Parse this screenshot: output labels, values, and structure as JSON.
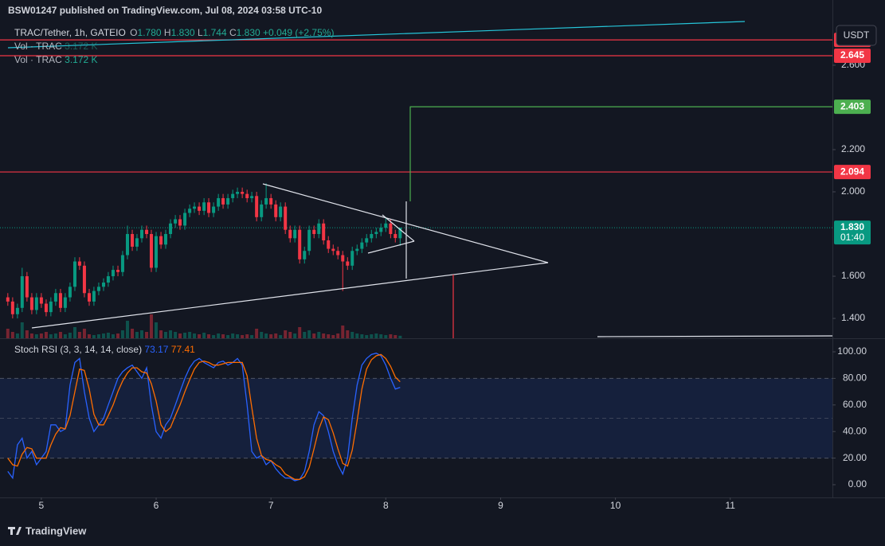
{
  "header": {
    "publisher": "BSW01247 published on TradingView.com, Jul 08, 2024 03:58 UTC-10",
    "brand": "TradingView"
  },
  "chart_data": [
    {
      "type": "candlestick",
      "title": "TRAC/Tether, 1h, GATEIO",
      "ohlc_names": [
        "O",
        "H",
        "L",
        "C"
      ],
      "ohlc_labels": [
        "1.780",
        "1.830",
        "1.744",
        "1.830"
      ],
      "change_label": "+0.049 (+2.75%)",
      "currency": "USDT",
      "up_color": "#089981",
      "down_color": "#f23645",
      "x": [
        4.708,
        4.75,
        4.792,
        4.833,
        4.875,
        4.917,
        4.958,
        5,
        5.042,
        5.083,
        5.125,
        5.167,
        5.208,
        5.25,
        5.292,
        5.333,
        5.375,
        5.417,
        5.458,
        5.5,
        5.542,
        5.583,
        5.625,
        5.667,
        5.708,
        5.75,
        5.792,
        5.833,
        5.875,
        5.917,
        5.958,
        6,
        6.042,
        6.083,
        6.125,
        6.167,
        6.208,
        6.25,
        6.292,
        6.333,
        6.375,
        6.417,
        6.458,
        6.5,
        6.542,
        6.583,
        6.625,
        6.667,
        6.708,
        6.75,
        6.792,
        6.833,
        6.875,
        6.917,
        6.958,
        7,
        7.042,
        7.083,
        7.125,
        7.167,
        7.208,
        7.25,
        7.292,
        7.333,
        7.375,
        7.417,
        7.458,
        7.5,
        7.542,
        7.583,
        7.625,
        7.667,
        7.708,
        7.75,
        7.792,
        7.833,
        7.875,
        7.917,
        7.958,
        8,
        8.042,
        8.083,
        8.125
      ],
      "open": [
        1.5,
        1.48,
        1.42,
        1.45,
        1.6,
        1.5,
        1.44,
        1.5,
        1.47,
        1.43,
        1.48,
        1.52,
        1.45,
        1.5,
        1.55,
        1.67,
        1.65,
        1.52,
        1.48,
        1.53,
        1.55,
        1.57,
        1.6,
        1.63,
        1.62,
        1.7,
        1.8,
        1.74,
        1.78,
        1.82,
        1.8,
        1.64,
        1.79,
        1.75,
        1.8,
        1.85,
        1.87,
        1.84,
        1.9,
        1.92,
        1.93,
        1.91,
        1.95,
        1.9,
        1.93,
        1.97,
        1.94,
        1.97,
        1.99,
        2.0,
        1.99,
        1.97,
        1.98,
        1.88,
        1.94,
        1.97,
        1.94,
        1.88,
        1.93,
        1.82,
        1.78,
        1.82,
        1.68,
        1.72,
        1.82,
        1.8,
        1.85,
        1.77,
        1.73,
        1.72,
        1.7,
        1.67,
        1.65,
        1.72,
        1.73,
        1.76,
        1.78,
        1.8,
        1.81,
        1.83,
        1.85,
        1.8,
        1.78
      ],
      "high": [
        1.52,
        1.5,
        1.47,
        1.64,
        1.62,
        1.52,
        1.52,
        1.52,
        1.49,
        1.5,
        1.54,
        1.54,
        1.52,
        1.57,
        1.69,
        1.69,
        1.67,
        1.54,
        1.55,
        1.57,
        1.59,
        1.62,
        1.65,
        1.65,
        1.72,
        1.84,
        1.82,
        1.8,
        1.84,
        1.84,
        1.82,
        1.81,
        1.81,
        1.82,
        1.87,
        1.89,
        1.89,
        1.92,
        1.94,
        1.95,
        1.95,
        1.97,
        1.97,
        1.95,
        1.99,
        1.99,
        1.99,
        2.01,
        2.02,
        2.02,
        2.01,
        2.0,
        2.0,
        1.96,
        2.04,
        1.99,
        1.96,
        1.95,
        1.95,
        1.84,
        1.84,
        1.84,
        1.74,
        1.84,
        1.84,
        1.87,
        1.87,
        1.79,
        1.75,
        1.74,
        1.72,
        1.69,
        1.74,
        1.75,
        1.78,
        1.8,
        1.82,
        1.83,
        1.85,
        1.88,
        1.87,
        1.82,
        1.83
      ],
      "low": [
        1.46,
        1.4,
        1.4,
        1.43,
        1.48,
        1.42,
        1.42,
        1.45,
        1.41,
        1.41,
        1.46,
        1.43,
        1.43,
        1.48,
        1.53,
        1.63,
        1.5,
        1.46,
        1.46,
        1.51,
        1.53,
        1.55,
        1.58,
        1.6,
        1.6,
        1.68,
        1.72,
        1.72,
        1.76,
        1.78,
        1.62,
        1.62,
        1.73,
        1.73,
        1.78,
        1.83,
        1.82,
        1.82,
        1.88,
        1.9,
        1.89,
        1.89,
        1.88,
        1.88,
        1.91,
        1.92,
        1.92,
        1.95,
        1.97,
        1.97,
        1.95,
        1.95,
        1.86,
        1.86,
        1.92,
        1.92,
        1.86,
        1.86,
        1.8,
        1.76,
        1.76,
        1.66,
        1.66,
        1.7,
        1.78,
        1.78,
        1.75,
        1.71,
        1.7,
        1.68,
        1.53,
        1.63,
        1.63,
        1.7,
        1.71,
        1.74,
        1.76,
        1.78,
        1.79,
        1.81,
        1.78,
        1.76,
        1.744
      ],
      "close": [
        1.48,
        1.42,
        1.45,
        1.6,
        1.5,
        1.44,
        1.5,
        1.47,
        1.43,
        1.48,
        1.52,
        1.45,
        1.5,
        1.55,
        1.67,
        1.65,
        1.52,
        1.48,
        1.53,
        1.55,
        1.57,
        1.6,
        1.63,
        1.62,
        1.7,
        1.8,
        1.74,
        1.78,
        1.82,
        1.8,
        1.64,
        1.79,
        1.75,
        1.8,
        1.85,
        1.87,
        1.84,
        1.9,
        1.92,
        1.93,
        1.91,
        1.95,
        1.9,
        1.93,
        1.97,
        1.94,
        1.97,
        1.99,
        2.0,
        1.99,
        1.97,
        1.98,
        1.88,
        1.94,
        1.97,
        1.94,
        1.88,
        1.93,
        1.82,
        1.78,
        1.82,
        1.68,
        1.72,
        1.82,
        1.8,
        1.85,
        1.77,
        1.73,
        1.72,
        1.7,
        1.67,
        1.65,
        1.72,
        1.73,
        1.76,
        1.78,
        1.8,
        1.81,
        1.83,
        1.85,
        1.8,
        1.781,
        1.83
      ],
      "volume": {
        "name": "Vol · TRAC",
        "value_label": "3.172 K",
        "values": [
          12,
          8,
          6,
          20,
          10,
          6,
          5,
          6,
          8,
          5,
          6,
          8,
          5,
          7,
          14,
          8,
          12,
          5,
          4,
          5,
          6,
          7,
          5,
          6,
          10,
          22,
          12,
          8,
          10,
          8,
          30,
          20,
          10,
          8,
          10,
          8,
          6,
          7,
          8,
          6,
          5,
          7,
          5,
          4,
          6,
          5,
          4,
          6,
          5,
          4,
          5,
          4,
          12,
          8,
          6,
          5,
          6,
          4,
          10,
          8,
          6,
          14,
          8,
          10,
          6,
          8,
          6,
          5,
          4,
          6,
          16,
          10,
          8,
          6,
          5,
          4,
          5,
          6,
          5,
          4,
          5,
          4,
          3.172
        ]
      },
      "levels": [
        {
          "value": 2.72,
          "color": "#f23645"
        },
        {
          "value": 2.645,
          "color": "#f23645"
        },
        {
          "value": 2.403,
          "color": "#4caf50",
          "from": 8.21
        },
        {
          "value": 2.094,
          "color": "#f23645"
        }
      ],
      "last_price": {
        "value": 1.83,
        "label": "1.830",
        "countdown": "01:40",
        "color": "#089981"
      },
      "xlim": [
        4.64,
        11.89
      ],
      "xticks": [
        5,
        6,
        7,
        8,
        9,
        10,
        11
      ],
      "ylim": [
        1.306,
        2.909
      ],
      "yticks": [
        {
          "value": 1.4,
          "label": "1.400"
        },
        {
          "value": 1.6,
          "label": "1.600"
        },
        {
          "value": 2.0,
          "label": "2.000"
        },
        {
          "value": 2.2,
          "label": "2.200"
        },
        {
          "value": 2.6,
          "label": "2.600"
        }
      ]
    },
    {
      "type": "line",
      "title": "Stoch RSI (3, 3, 14, 14, close)",
      "series": [
        {
          "color": "#2962ff",
          "values": [
            10,
            5,
            30,
            35,
            20,
            25,
            15,
            20,
            25,
            45,
            45,
            40,
            42,
            75,
            92,
            95,
            70,
            50,
            40,
            45,
            50,
            60,
            70,
            80,
            85,
            88,
            90,
            85,
            80,
            88,
            60,
            40,
            35,
            45,
            50,
            60,
            70,
            80,
            88,
            93,
            95,
            92,
            90,
            88,
            92,
            93,
            90,
            92,
            95,
            90,
            60,
            25,
            20,
            22,
            15,
            18,
            12,
            8,
            5,
            5,
            3,
            4,
            10,
            25,
            45,
            55,
            52,
            40,
            25,
            15,
            8,
            20,
            50,
            75,
            90,
            95,
            98,
            99,
            97,
            90,
            80,
            72,
            73.17
          ]
        },
        {
          "color": "#ff6d00",
          "values": [
            20,
            15,
            14,
            23,
            28,
            27,
            20,
            20,
            20,
            30,
            38,
            43,
            42,
            52,
            70,
            87,
            86,
            72,
            53,
            45,
            45,
            52,
            60,
            70,
            78,
            84,
            88,
            88,
            85,
            84,
            76,
            63,
            45,
            40,
            43,
            52,
            60,
            70,
            79,
            87,
            92,
            93,
            92,
            90,
            90,
            91,
            92,
            92,
            92,
            92,
            82,
            58,
            35,
            22,
            19,
            18,
            15,
            13,
            8,
            6,
            4,
            4,
            6,
            13,
            27,
            42,
            51,
            49,
            39,
            27,
            16,
            14,
            26,
            48,
            72,
            87,
            94,
            97,
            98,
            95,
            89,
            81,
            77.41
          ]
        }
      ],
      "band": [
        20,
        80
      ],
      "midline": 50,
      "ylim": [
        -9.6,
        109.6
      ],
      "yticks": [
        {
          "value": 0,
          "label": "0.00"
        },
        {
          "value": 20,
          "label": "20.00"
        },
        {
          "value": 40,
          "label": "40.00"
        },
        {
          "value": 60,
          "label": "60.00"
        },
        {
          "value": 80,
          "label": "80.00"
        },
        {
          "value": 100,
          "label": "100.00"
        }
      ]
    }
  ]
}
